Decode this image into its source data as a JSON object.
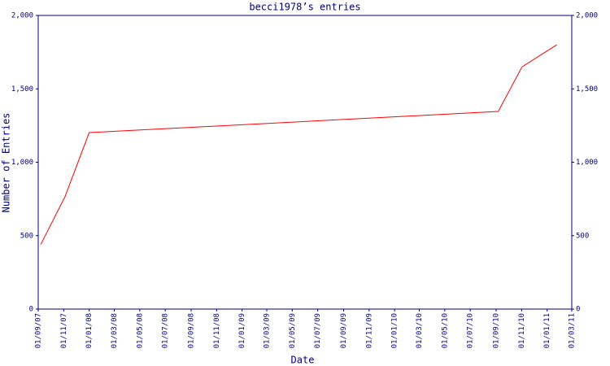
{
  "chart_data": {
    "type": "line",
    "title": "becci1978’s entries",
    "x_label": "Date",
    "y_label": "Number of Entries",
    "x": [
      "2007-09-07",
      "2007-11-04",
      "2008-01-01",
      "2010-09-06",
      "2010-11-02",
      "2011-01-24"
    ],
    "series": [
      {
        "name": "entries",
        "color": "#ff0000",
        "values": [
          440,
          765,
          1202,
          1346,
          1650,
          1800
        ]
      }
    ],
    "xlim": [
      "2007-09-01",
      "2011-03-01"
    ],
    "xticks": [
      {
        "value": "2007-09-01",
        "label": "01/09/07"
      },
      {
        "value": "2007-11-01",
        "label": "01/11/07"
      },
      {
        "value": "2008-01-01",
        "label": "01/01/08"
      },
      {
        "value": "2008-03-01",
        "label": "01/03/08"
      },
      {
        "value": "2008-05-01",
        "label": "01/05/08"
      },
      {
        "value": "2008-07-01",
        "label": "01/07/08"
      },
      {
        "value": "2008-09-01",
        "label": "01/09/08"
      },
      {
        "value": "2008-11-01",
        "label": "01/11/08"
      },
      {
        "value": "2009-01-01",
        "label": "01/01/09"
      },
      {
        "value": "2009-03-01",
        "label": "01/03/09"
      },
      {
        "value": "2009-05-01",
        "label": "01/05/09"
      },
      {
        "value": "2009-07-01",
        "label": "01/07/09"
      },
      {
        "value": "2009-09-01",
        "label": "01/09/09"
      },
      {
        "value": "2009-11-01",
        "label": "01/11/09"
      },
      {
        "value": "2010-01-01",
        "label": "01/01/10"
      },
      {
        "value": "2010-03-01",
        "label": "01/03/10"
      },
      {
        "value": "2010-05-01",
        "label": "01/05/10"
      },
      {
        "value": "2010-07-01",
        "label": "01/07/10"
      },
      {
        "value": "2010-09-01",
        "label": "01/09/10"
      },
      {
        "value": "2010-11-01",
        "label": "01/11/10"
      },
      {
        "value": "2011-01-01",
        "label": "01/01/11"
      },
      {
        "value": "2011-03-01",
        "label": "01/03/11"
      }
    ],
    "ylim": [
      0,
      2000
    ],
    "yticks": [
      0,
      500,
      {
        "value": 1000,
        "label": "1,000"
      },
      {
        "value": 1500,
        "label": "1,500"
      },
      {
        "value": 2000,
        "label": "2,000"
      }
    ],
    "axis_color": "#000080",
    "grid": false
  }
}
